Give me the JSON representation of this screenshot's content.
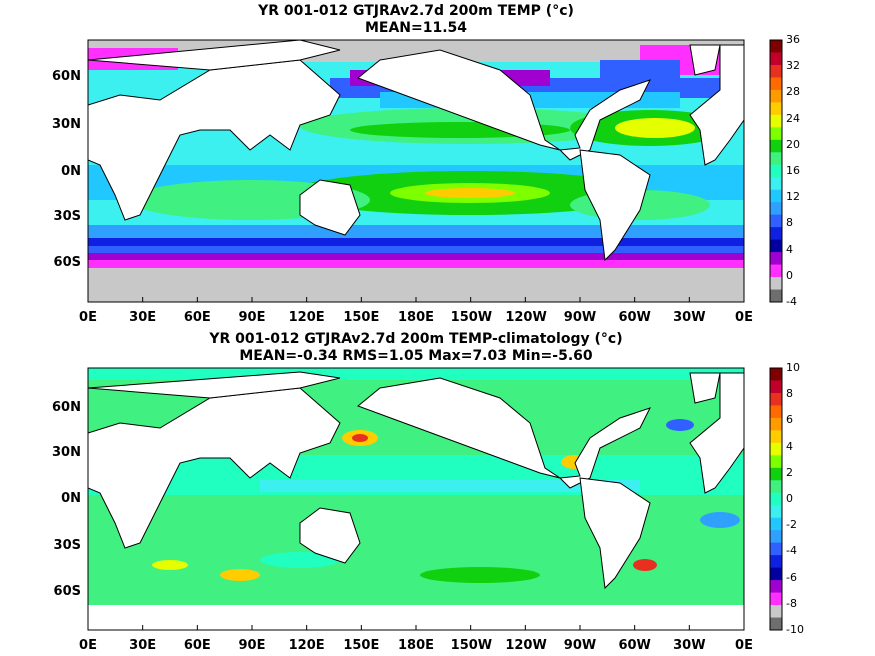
{
  "top": {
    "title_line1": "YR 001-012 GTJRAv2.7d 200m TEMP (°c)",
    "title_line2": "MEAN=11.54",
    "colorbar_labels": [
      "36",
      "32",
      "28",
      "24",
      "20",
      "16",
      "12",
      "8",
      "4",
      "0",
      "-4"
    ],
    "colorbar_colors": [
      "#7f0000",
      "#c0002a",
      "#e83020",
      "#ff6a00",
      "#ff9a00",
      "#ffcc00",
      "#e6ff00",
      "#7dff00",
      "#10d010",
      "#40f080",
      "#20ffc0",
      "#3cf0f0",
      "#20c8ff",
      "#30a0ff",
      "#3060ff",
      "#1020e0",
      "#0000a0",
      "#a000d0",
      "#ff30ff",
      "#c8c8c8",
      "#6e6e6e"
    ]
  },
  "bottom": {
    "title_line1": "YR 001-012 GTJRAv2.7d 200m TEMP-climatology (°c)",
    "title_line2": "MEAN=-0.34   RMS=1.05   Max=7.03   Min=-5.60",
    "colorbar_labels": [
      "10",
      "8",
      "6",
      "4",
      "2",
      "0",
      "-2",
      "-4",
      "-6",
      "-8",
      "-10"
    ],
    "colorbar_colors": [
      "#7f0000",
      "#c0002a",
      "#e83020",
      "#ff6a00",
      "#ff9a00",
      "#ffcc00",
      "#e6ff00",
      "#7dff00",
      "#10d010",
      "#40f080",
      "#20ffc0",
      "#3cf0f0",
      "#20c8ff",
      "#30a0ff",
      "#3060ff",
      "#1020e0",
      "#0000a0",
      "#a000d0",
      "#ff30ff",
      "#c8c8c8",
      "#6e6e6e"
    ]
  },
  "x_ticks": [
    "0E",
    "30E",
    "60E",
    "90E",
    "120E",
    "150E",
    "180E",
    "150W",
    "120W",
    "90W",
    "60W",
    "30W",
    "0E"
  ],
  "y_ticks": [
    "60N",
    "30N",
    "0N",
    "30S",
    "60S"
  ],
  "colors": {
    "land": "#ffffff",
    "coast": "#000000",
    "ice": "#c8c8c8"
  }
}
